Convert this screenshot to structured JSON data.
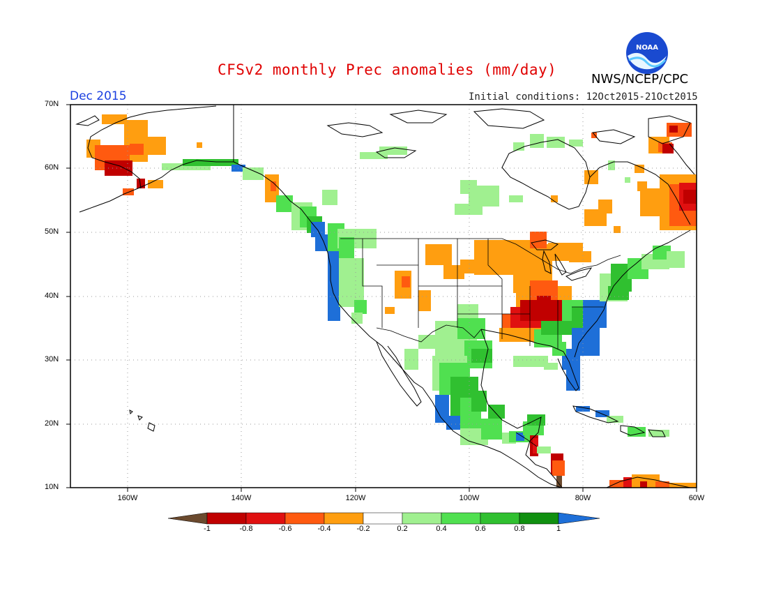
{
  "title": "CFSv2 monthly Prec anomalies (mm/day)",
  "agency": "NWS/NCEP/CPC",
  "logo_text": "NOAA",
  "month": "Dec 2015",
  "initial_conditions": "Initial conditions: 12Oct2015-21Oct2015",
  "lat_labels": [
    "70N",
    "60N",
    "50N",
    "40N",
    "30N",
    "20N",
    "10N"
  ],
  "lon_labels": [
    "160W",
    "140W",
    "120W",
    "100W",
    "80W",
    "60W"
  ],
  "colorbar": {
    "labels": [
      "-1",
      "-0.8",
      "-0.6",
      "-0.4",
      "-0.2",
      "0.2",
      "0.4",
      "0.6",
      "0.8",
      "1"
    ],
    "colors": [
      "#6b4a2e",
      "#c00000",
      "#e01010",
      "#ff5a10",
      "#ff9e10",
      "#ffffff",
      "#a0f090",
      "#50e050",
      "#30c030",
      "#109010",
      "#1e6fd8"
    ]
  }
}
